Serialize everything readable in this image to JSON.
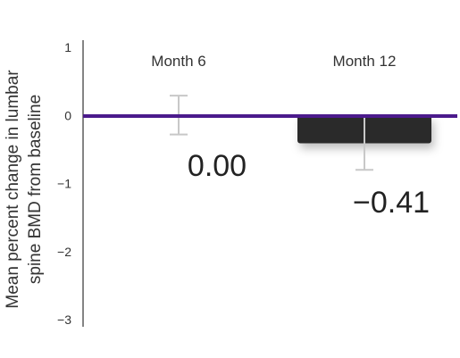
{
  "chart_data": {
    "type": "bar",
    "categories": [
      "Month 6",
      "Month 12"
    ],
    "values": [
      0.0,
      -0.41
    ],
    "value_labels": [
      "0.00",
      "−0.41"
    ],
    "error_bars": [
      {
        "low": -0.28,
        "high": 0.29
      },
      {
        "low": -0.8,
        "high": 0.0
      }
    ],
    "ylabel_lines": [
      "Mean percent change in lumbar",
      "spine BMD from baseline"
    ],
    "ylim": [
      -3,
      1
    ],
    "y_ticks": [
      1,
      0,
      -1,
      -2,
      -3
    ],
    "y_tick_labels": [
      "1",
      "0",
      "−1",
      "−2",
      "−3"
    ],
    "grid": false,
    "legend": "none",
    "colors": {
      "baseline": "#4b1a8c",
      "bar_month12": "#2b2b2b",
      "bar_month6_outline": "#ffffff",
      "error_bar": "#c8c8c8",
      "axis": "#333333"
    }
  }
}
